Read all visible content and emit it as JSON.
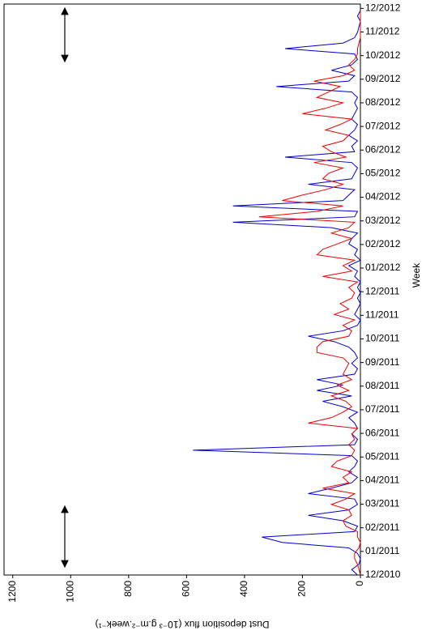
{
  "chart_data": {
    "type": "line",
    "xlabel": "Week",
    "ylabel": "Dust deposition flux (10⁻³ g.m⁻².week⁻¹)",
    "x": [
      0,
      1,
      2,
      3,
      4,
      5,
      6,
      7,
      8,
      9,
      10,
      11,
      12,
      13,
      14,
      15,
      16,
      17,
      18,
      19,
      20,
      21,
      22,
      23,
      24,
      25,
      26,
      27,
      28,
      29,
      30,
      31,
      32,
      33,
      34,
      35,
      36,
      37,
      38,
      39,
      40,
      41,
      42,
      43,
      44,
      45,
      46,
      47,
      48,
      49,
      50,
      51,
      52,
      53,
      54,
      55,
      56,
      57,
      58,
      59,
      60,
      61,
      62,
      63,
      64,
      65,
      66,
      67,
      68,
      69,
      70,
      71,
      72,
      73,
      74,
      75,
      76,
      77,
      78,
      79,
      80,
      81,
      82,
      83,
      84,
      85,
      86,
      87,
      88,
      89,
      90,
      91,
      92,
      93,
      94,
      95,
      96,
      97,
      98,
      99,
      100,
      101,
      102,
      103,
      104
    ],
    "series": [
      {
        "color": "#0000cc",
        "values": [
          10,
          30,
          5,
          0,
          10,
          40,
          270,
          340,
          20,
          10,
          60,
          180,
          40,
          10,
          20,
          180,
          100,
          30,
          10,
          40,
          20,
          10,
          30,
          578,
          20,
          10,
          30,
          10,
          20,
          40,
          10,
          60,
          130,
          30,
          150,
          60,
          150,
          20,
          10,
          30,
          10,
          20,
          40,
          90,
          180,
          60,
          10,
          0,
          20,
          10,
          0,
          10,
          0,
          10,
          0,
          20,
          10,
          40,
          0,
          20,
          10,
          40,
          30,
          10,
          100,
          440,
          20,
          10,
          440,
          60,
          40,
          20,
          180,
          30,
          20,
          10,
          30,
          260,
          20,
          30,
          10,
          40,
          20,
          10,
          30,
          20,
          10,
          20,
          10,
          30,
          290,
          40,
          20,
          100,
          30,
          10,
          20,
          260,
          60,
          20,
          10,
          5,
          0,
          10,
          0
        ]
      },
      {
        "color": "#ee0000",
        "values": [
          0,
          5,
          10,
          20,
          20,
          5,
          0,
          10,
          10,
          50,
          60,
          30,
          40,
          100,
          50,
          20,
          130,
          40,
          60,
          30,
          100,
          80,
          30,
          20,
          40,
          20,
          30,
          10,
          180,
          100,
          60,
          30,
          50,
          100,
          40,
          80,
          30,
          60,
          50,
          40,
          60,
          150,
          150,
          130,
          40,
          30,
          60,
          20,
          90,
          40,
          70,
          30,
          20,
          40,
          10,
          130,
          30,
          60,
          20,
          150,
          130,
          80,
          30,
          100,
          40,
          20,
          350,
          150,
          60,
          270,
          200,
          120,
          60,
          130,
          110,
          60,
          160,
          50,
          100,
          130,
          60,
          40,
          120,
          70,
          30,
          200,
          120,
          60,
          150,
          110,
          70,
          160,
          60,
          20,
          40,
          20,
          10,
          10,
          5,
          0,
          0,
          0,
          0,
          0,
          0
        ]
      }
    ],
    "xlim": [
      0,
      105.2
    ],
    "xticks": [
      {
        "value": 0,
        "label": "12/2010"
      },
      {
        "value": 4.35,
        "label": "01/2011"
      },
      {
        "value": 8.7,
        "label": "02/2011"
      },
      {
        "value": 13.05,
        "label": "03/2011"
      },
      {
        "value": 17.4,
        "label": "04/2011"
      },
      {
        "value": 21.75,
        "label": "05/2011"
      },
      {
        "value": 26.1,
        "label": "06/2011"
      },
      {
        "value": 30.45,
        "label": "07/2011"
      },
      {
        "value": 34.8,
        "label": "08/2011"
      },
      {
        "value": 39.15,
        "label": "09/2011"
      },
      {
        "value": 43.5,
        "label": "10/2011"
      },
      {
        "value": 47.85,
        "label": "11/2011"
      },
      {
        "value": 52.2,
        "label": "12/2011"
      },
      {
        "value": 56.55,
        "label": "01/2012"
      },
      {
        "value": 60.9,
        "label": "02/2012"
      },
      {
        "value": 65.25,
        "label": "03/2012"
      },
      {
        "value": 69.6,
        "label": "04/2012"
      },
      {
        "value": 73.95,
        "label": "05/2012"
      },
      {
        "value": 78.3,
        "label": "06/2012"
      },
      {
        "value": 82.65,
        "label": "07/2012"
      },
      {
        "value": 87,
        "label": "08/2012"
      },
      {
        "value": 91.35,
        "label": "09/2012"
      },
      {
        "value": 95.7,
        "label": "10/2012"
      },
      {
        "value": 100.05,
        "label": "11/2012"
      },
      {
        "value": 104.4,
        "label": "12/2012"
      }
    ],
    "ylim": [
      0,
      1230
    ],
    "yticks": [
      0,
      200,
      400,
      600,
      800,
      1000,
      1200
    ],
    "grid": false
  }
}
